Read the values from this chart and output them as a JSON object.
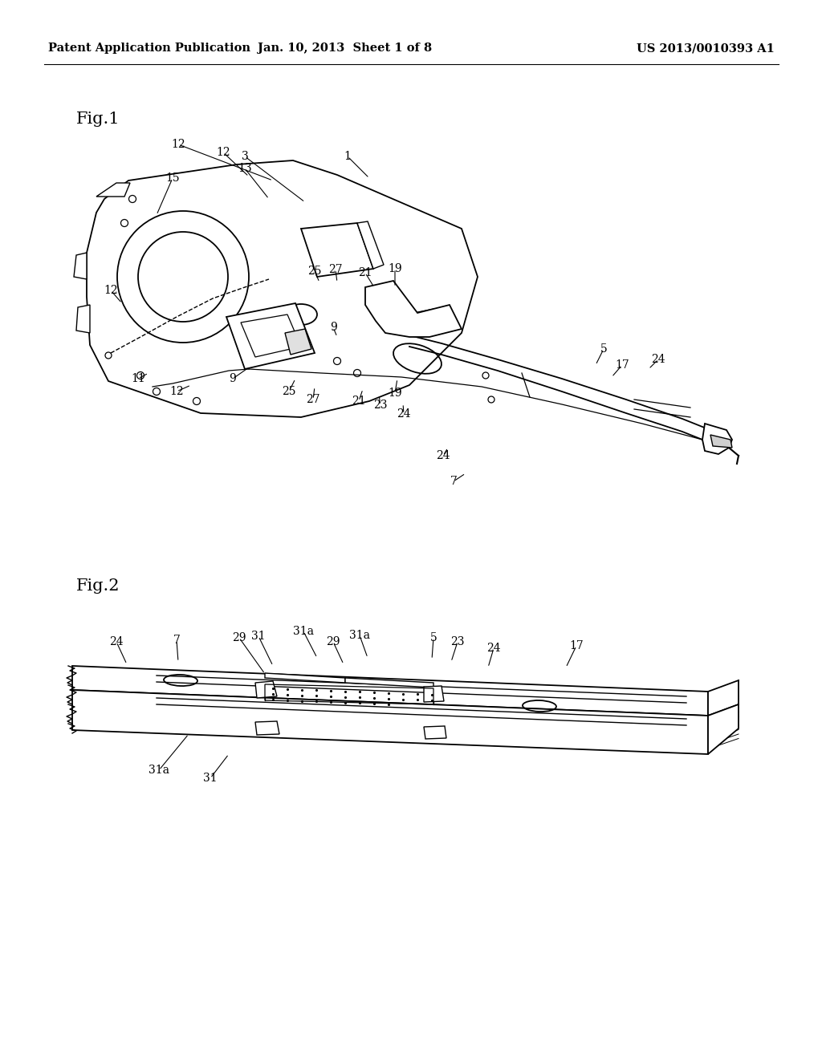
{
  "bg_color": "#ffffff",
  "line_color": "#000000",
  "header_left": "Patent Application Publication",
  "header_center": "Jan. 10, 2013  Sheet 1 of 8",
  "header_right": "US 2013/0010393 A1",
  "fig1_label": "Fig.1",
  "fig2_label": "Fig.2",
  "header_fontsize": 10.5,
  "fig_label_fontsize": 15,
  "ref_fontsize": 10
}
